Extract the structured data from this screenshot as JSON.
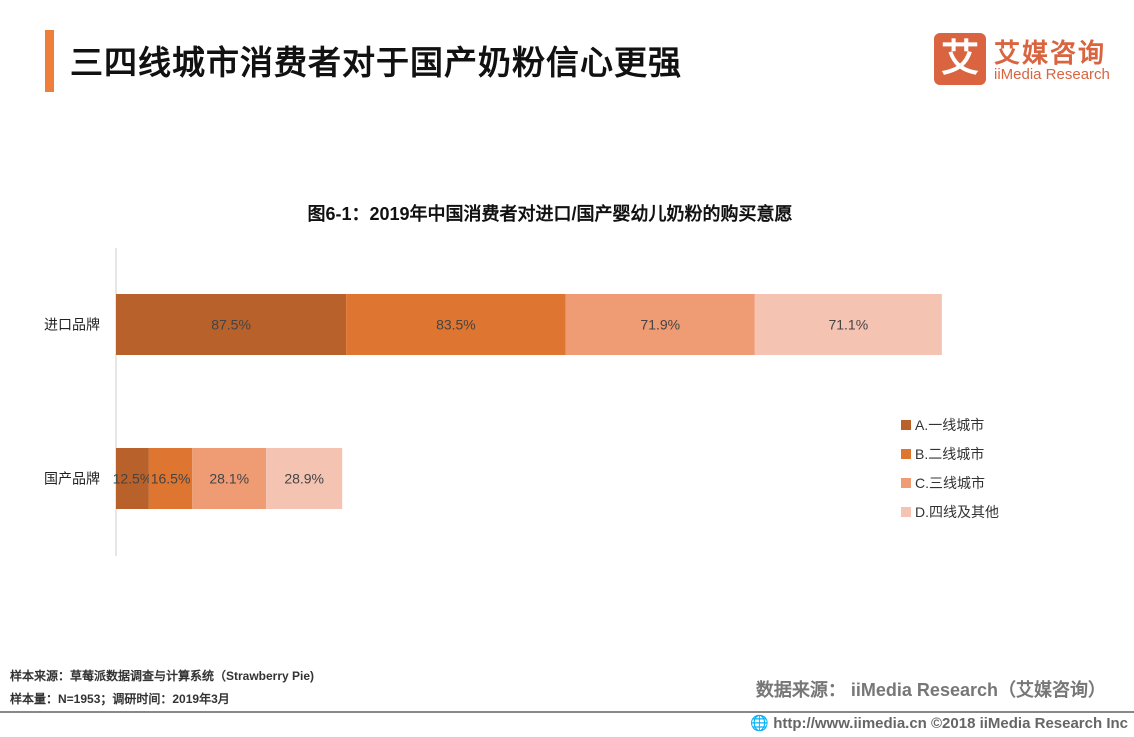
{
  "header": {
    "title": "三四线城市消费者对于国产奶粉信心更强"
  },
  "logo": {
    "mark": "艾",
    "cn": "艾媒咨询",
    "en": "iiMedia Research"
  },
  "chart_data": {
    "type": "bar",
    "orientation": "horizontal",
    "stacked": true,
    "title": "图6-1：2019年中国消费者对进口/国产婴幼儿奶粉的购买意愿",
    "categories": [
      "进口品牌",
      "国产品牌"
    ],
    "series": [
      {
        "name": "A.一线城市",
        "values": [
          87.5,
          12.5
        ],
        "color": "#B8612A"
      },
      {
        "name": "B.二线城市",
        "values": [
          83.5,
          16.5
        ],
        "color": "#DE7530"
      },
      {
        "name": "C.三线城市",
        "values": [
          71.9,
          28.1
        ],
        "color": "#EF9B73"
      },
      {
        "name": "D.四线及其他",
        "values": [
          71.1,
          28.9
        ],
        "color": "#F5C3B1"
      }
    ],
    "value_suffix": "%",
    "legend": "right",
    "grid": false
  },
  "footer": {
    "sample_source": "样本来源：草莓派数据调查与计算系统（Strawberry   Pie)",
    "sample_size": "样本量：N=1953；调研时间：2019年3月",
    "data_source": "数据来源： iiMedia Research（艾媒咨询）",
    "copyright": "http://www.iimedia.cn   ©2018  iiMedia Research  Inc"
  }
}
